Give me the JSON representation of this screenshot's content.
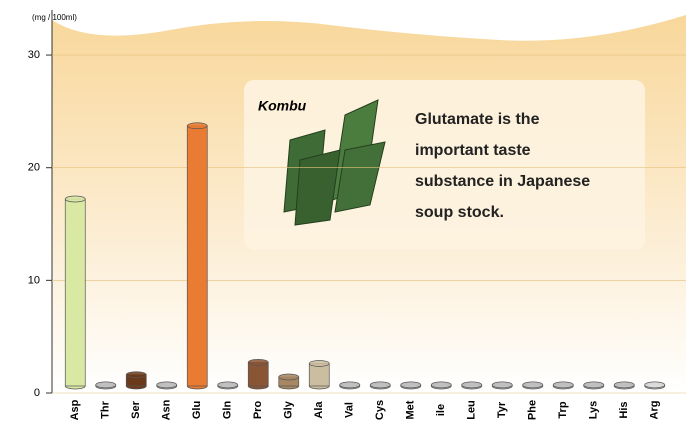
{
  "chart_data": {
    "type": "bar",
    "y_unit": "(mg / 100ml)",
    "categories": [
      "Asp",
      "Thr",
      "Ser",
      "Asn",
      "Glu",
      "Gln",
      "Pro",
      "Gly",
      "Ala",
      "Val",
      "Cys",
      "Met",
      "ile",
      "Leu",
      "Tyr",
      "Phe",
      "Trp",
      "Lys",
      "His",
      "Arg"
    ],
    "values": [
      16.6,
      0.1,
      1.0,
      0.1,
      23.1,
      0.1,
      2.1,
      0.8,
      2.0,
      0.1,
      0.1,
      0.1,
      0.1,
      0.1,
      0.1,
      0.1,
      0.1,
      0.1,
      0.1,
      0.1
    ],
    "colors": [
      "#d9e8a3",
      "#c9c9c9",
      "#6b3a1a",
      "#c9c9c9",
      "#ea7b33",
      "#c9c9c9",
      "#8a5535",
      "#a88762",
      "#cbbd9f",
      "#c9c9c9",
      "#c9c9c9",
      "#c9c9c9",
      "#c9c9c9",
      "#c9c9c9",
      "#c9c9c9",
      "#c9c9c9",
      "#c9c9c9",
      "#c9c9c9",
      "#c9c9c9",
      "#e6e6e6"
    ],
    "ylim": [
      0,
      34
    ],
    "yticks": [
      0,
      10,
      20,
      30
    ],
    "grid": true,
    "annotation": {
      "label": "Kombu",
      "lines": [
        "Glutamate is the",
        "important taste",
        "substance in Japanese",
        "soup stock."
      ]
    }
  }
}
